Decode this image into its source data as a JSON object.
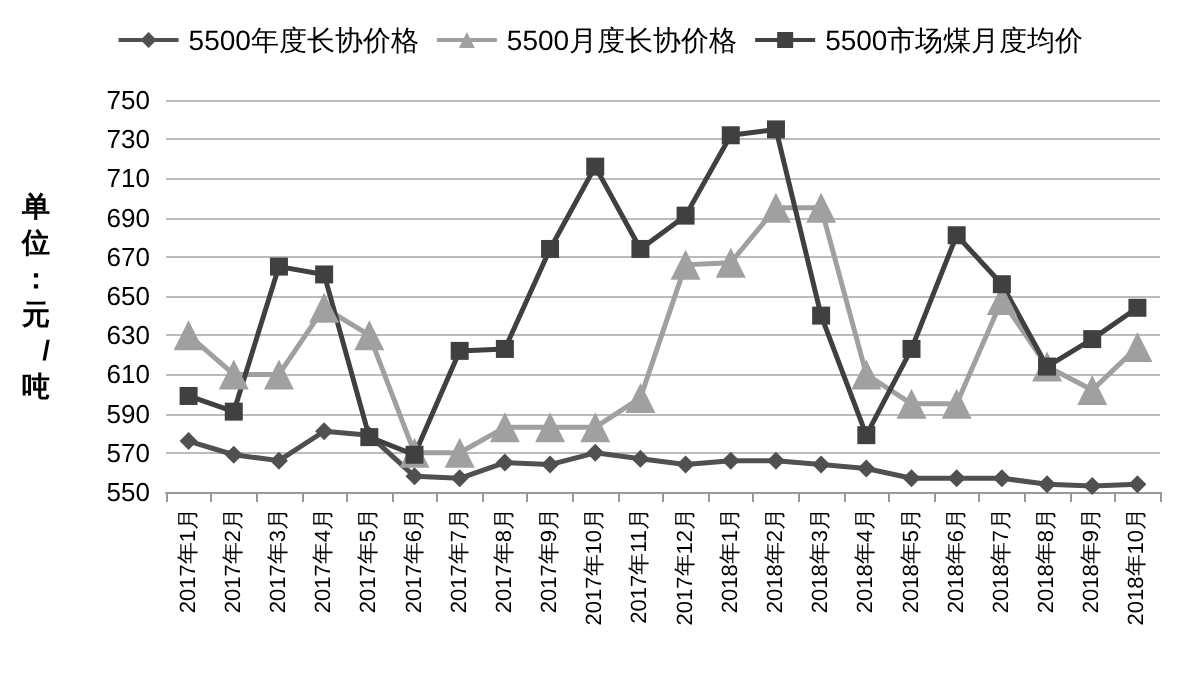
{
  "chart_data": {
    "type": "line",
    "ylabel": "单位：元/吨",
    "categories": [
      "2017年1月",
      "2017年2月",
      "2017年3月",
      "2017年4月",
      "2017年5月",
      "2017年6月",
      "2017年7月",
      "2017年8月",
      "2017年9月",
      "2017年10月",
      "2017年11月",
      "2017年12月",
      "2018年1月",
      "2018年2月",
      "2018年3月",
      "2018年4月",
      "2018年5月",
      "2018年6月",
      "2018年7月",
      "2018年8月",
      "2018年9月",
      "2018年10月"
    ],
    "series": [
      {
        "name": "5500年度长协价格",
        "color": "#505050",
        "marker": "diamond",
        "values": [
          576,
          569,
          566,
          581,
          579,
          558,
          557,
          565,
          564,
          570,
          567,
          564,
          566,
          566,
          564,
          562,
          557,
          557,
          557,
          554,
          553,
          554
        ]
      },
      {
        "name": "5500月度长协价格",
        "color": "#a0a0a0",
        "marker": "triangle",
        "values": [
          630,
          610,
          610,
          644,
          630,
          570,
          570,
          583,
          583,
          583,
          598,
          666,
          667,
          695,
          695,
          610,
          595,
          595,
          648,
          614,
          602,
          624
        ]
      },
      {
        "name": "5500市场煤月度均价",
        "color": "#404040",
        "marker": "square",
        "values": [
          599,
          591,
          665,
          661,
          578,
          569,
          622,
          623,
          674,
          716,
          674,
          691,
          732,
          735,
          640,
          579,
          623,
          681,
          656,
          614,
          628,
          644
        ]
      }
    ],
    "ylim": [
      550,
      750
    ],
    "yticks": [
      550,
      570,
      590,
      610,
      630,
      650,
      670,
      690,
      710,
      730,
      750
    ],
    "grid": "y",
    "legend": "top",
    "line_style": "solid"
  }
}
